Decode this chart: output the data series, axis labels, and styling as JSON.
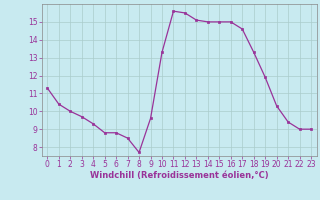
{
  "x": [
    0,
    1,
    2,
    3,
    4,
    5,
    6,
    7,
    8,
    9,
    10,
    11,
    12,
    13,
    14,
    15,
    16,
    17,
    18,
    19,
    20,
    21,
    22,
    23
  ],
  "y": [
    11.3,
    10.4,
    10.0,
    9.7,
    9.3,
    8.8,
    8.8,
    8.5,
    7.7,
    9.6,
    13.3,
    15.6,
    15.5,
    15.1,
    15.0,
    15.0,
    15.0,
    14.6,
    13.3,
    11.9,
    10.3,
    9.4,
    9.0,
    9.0
  ],
  "line_color": "#993399",
  "marker_color": "#993399",
  "bg_color": "#c8eaf0",
  "grid_color": "#aacccc",
  "xlabel": "Windchill (Refroidissement éolien,°C)",
  "xlabel_color": "#993399",
  "tick_color": "#993399",
  "ylim": [
    7.5,
    16.0
  ],
  "xlim": [
    -0.5,
    23.5
  ],
  "yticks": [
    8,
    9,
    10,
    11,
    12,
    13,
    14,
    15
  ],
  "xticks": [
    0,
    1,
    2,
    3,
    4,
    5,
    6,
    7,
    8,
    9,
    10,
    11,
    12,
    13,
    14,
    15,
    16,
    17,
    18,
    19,
    20,
    21,
    22,
    23
  ],
  "tick_fontsize": 5.5,
  "xlabel_fontsize": 6.0,
  "spine_color": "#888888"
}
